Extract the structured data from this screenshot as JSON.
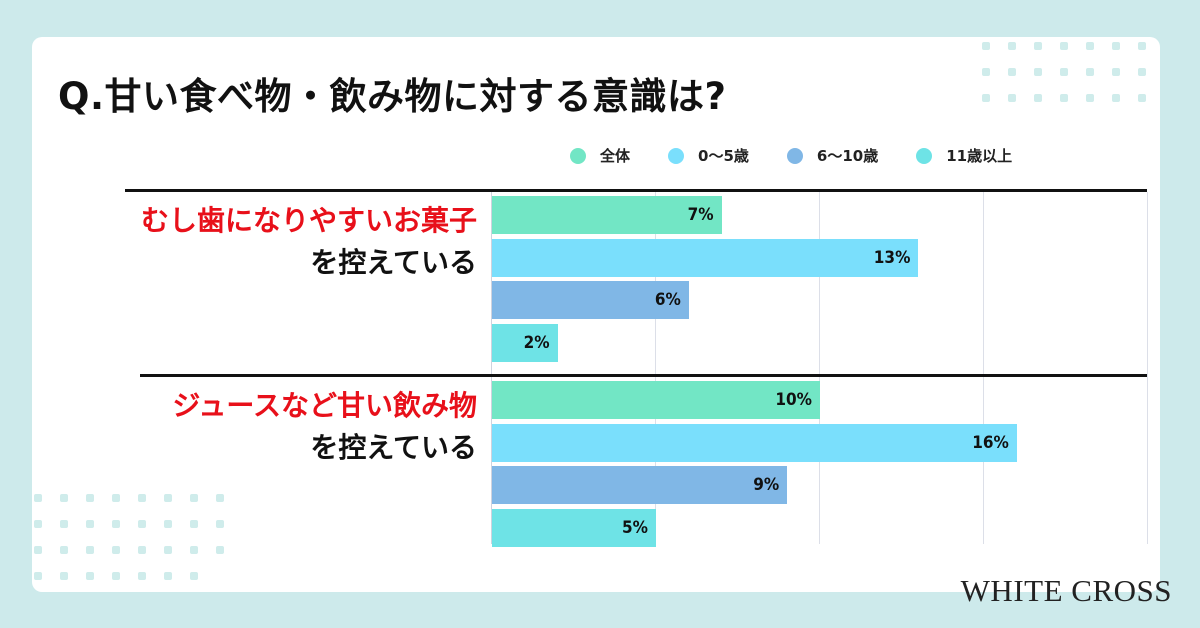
{
  "title": "Q.甘い食べ物・飲み物に対する意識は?",
  "brand": "WHITE CROSS",
  "legend": [
    {
      "label": "全体",
      "color": "#72e6c5"
    },
    {
      "label": "0〜5歳",
      "color": "#7adffc"
    },
    {
      "label": "6〜10歳",
      "color": "#80b7e6"
    },
    {
      "label": "11歳以上",
      "color": "#6ee3e6"
    }
  ],
  "categories": [
    {
      "highlight": "むし歯になりやすいお菓子",
      "rest": "を控えている",
      "bars": [
        {
          "series": "全体",
          "value": 7,
          "label": "7%"
        },
        {
          "series": "0〜5歳",
          "value": 13,
          "label": "13%"
        },
        {
          "series": "6〜10歳",
          "value": 6,
          "label": "6%"
        },
        {
          "series": "11歳以上",
          "value": 2,
          "label": "2%"
        }
      ]
    },
    {
      "highlight": "ジュースなど甘い飲み物",
      "rest": "を控えている",
      "bars": [
        {
          "series": "全体",
          "value": 10,
          "label": "10%"
        },
        {
          "series": "0〜5歳",
          "value": 16,
          "label": "16%"
        },
        {
          "series": "6〜10歳",
          "value": 9,
          "label": "9%"
        },
        {
          "series": "11歳以上",
          "value": 5,
          "label": "5%"
        }
      ]
    }
  ],
  "chart_data": {
    "type": "bar",
    "orientation": "horizontal",
    "title": "Q.甘い食べ物・飲み物に対する意識は?",
    "categories": [
      "むし歯になりやすいお菓子を控えている",
      "ジュースなど甘い飲み物を控えている"
    ],
    "series": [
      {
        "name": "全体",
        "values": [
          7,
          10
        ],
        "color": "#72e6c5"
      },
      {
        "name": "0〜5歳",
        "values": [
          13,
          16
        ],
        "color": "#7adffc"
      },
      {
        "name": "6〜10歳",
        "values": [
          6,
          9
        ],
        "color": "#80b7e6"
      },
      {
        "name": "11歳以上",
        "values": [
          2,
          5
        ],
        "color": "#6ee3e6"
      }
    ],
    "xlabel": "",
    "ylabel": "",
    "xlim": [
      0,
      20
    ],
    "gridlines": [
      5,
      10,
      15,
      20
    ],
    "grid": true,
    "legend_position": "top-right",
    "value_format": "percent"
  }
}
